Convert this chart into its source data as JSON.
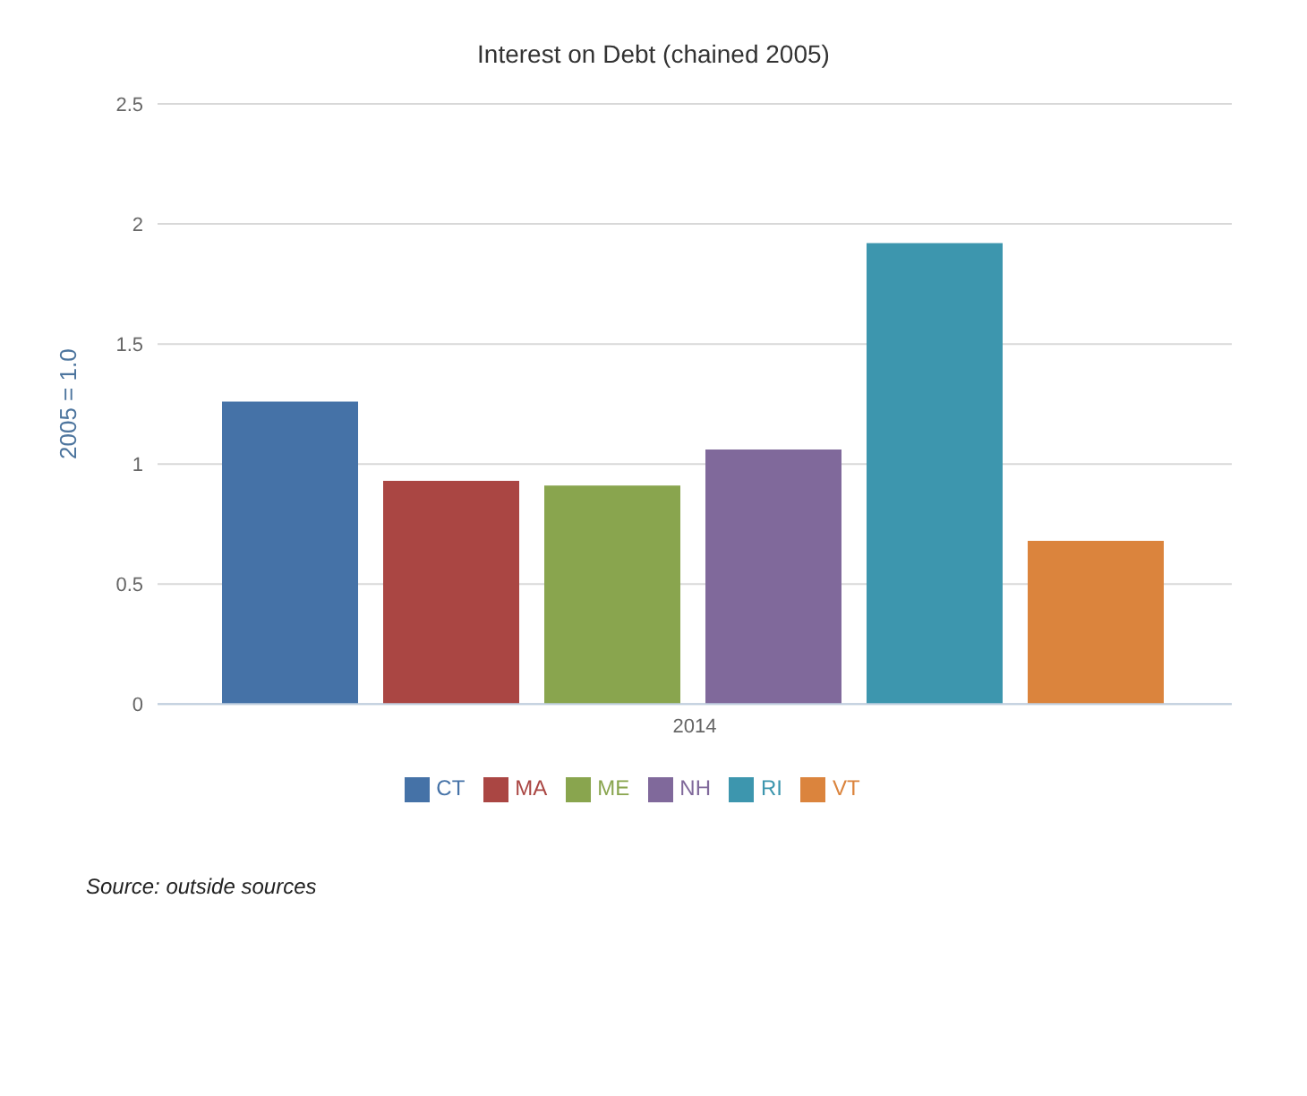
{
  "chart_data": {
    "type": "bar",
    "title": "Interest on Debt (chained 2005)",
    "ylabel": "2005 = 1.0",
    "categories": [
      "2014"
    ],
    "series": [
      {
        "name": "CT",
        "color": "#4572a7",
        "values": [
          1.26
        ]
      },
      {
        "name": "MA",
        "color": "#aa4643",
        "values": [
          0.93
        ]
      },
      {
        "name": "ME",
        "color": "#89a54e",
        "values": [
          0.91
        ]
      },
      {
        "name": "NH",
        "color": "#80699b",
        "values": [
          1.06
        ]
      },
      {
        "name": "RI",
        "color": "#3d96ae",
        "values": [
          1.92
        ]
      },
      {
        "name": "VT",
        "color": "#db843d",
        "values": [
          0.68
        ]
      }
    ],
    "ylim": [
      0,
      2.5
    ],
    "yticks": [
      0,
      0.5,
      1,
      1.5,
      2,
      2.5
    ],
    "grid": "y",
    "legend": "bottom",
    "annotations": [
      "Source: outside sources"
    ]
  }
}
